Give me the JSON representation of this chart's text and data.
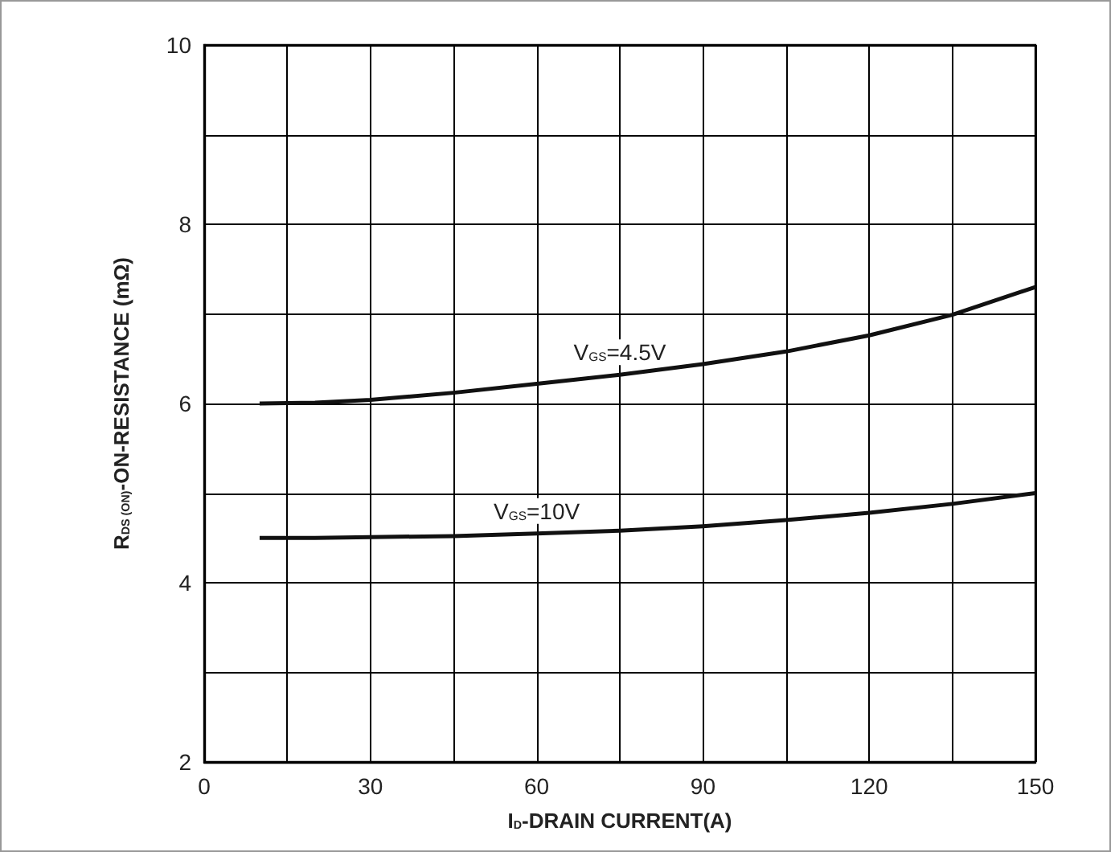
{
  "chart_data": {
    "type": "line",
    "xlabel": "I$_{D}$-DRAIN CURRENT(A)",
    "ylabel": "R$_{DS (ON)}$-ON-RESISTANCE (mΩ)",
    "x": [
      10,
      20,
      30,
      45,
      60,
      75,
      90,
      105,
      120,
      135,
      150
    ],
    "series": [
      {
        "name": "V$_{GS}$=4.5V",
        "color": "#111111",
        "values": [
          6.0,
          6.01,
          6.04,
          6.12,
          6.22,
          6.32,
          6.44,
          6.58,
          6.76,
          6.99,
          7.3
        ]
      },
      {
        "name": "V$_{GS}$=10V",
        "color": "#111111",
        "values": [
          4.5,
          4.5,
          4.51,
          4.52,
          4.55,
          4.58,
          4.63,
          4.7,
          4.78,
          4.88,
          5.0
        ]
      }
    ],
    "xlim": [
      0,
      150
    ],
    "ylim": [
      2,
      10
    ],
    "xticks": [
      0,
      {
        "value": 15,
        "label": null
      },
      30,
      {
        "value": 45,
        "label": null
      },
      60,
      {
        "value": 75,
        "label": null
      },
      90,
      {
        "value": 105,
        "label": null
      },
      120,
      {
        "value": 135,
        "label": null
      },
      150
    ],
    "yticks": [
      2,
      {
        "value": 3,
        "label": null
      },
      4,
      {
        "value": 5,
        "label": null
      },
      6,
      {
        "value": 7,
        "label": null
      },
      8,
      {
        "value": 9,
        "label": null
      },
      10
    ],
    "grid": true,
    "marker": "none",
    "line_style": "solid"
  }
}
